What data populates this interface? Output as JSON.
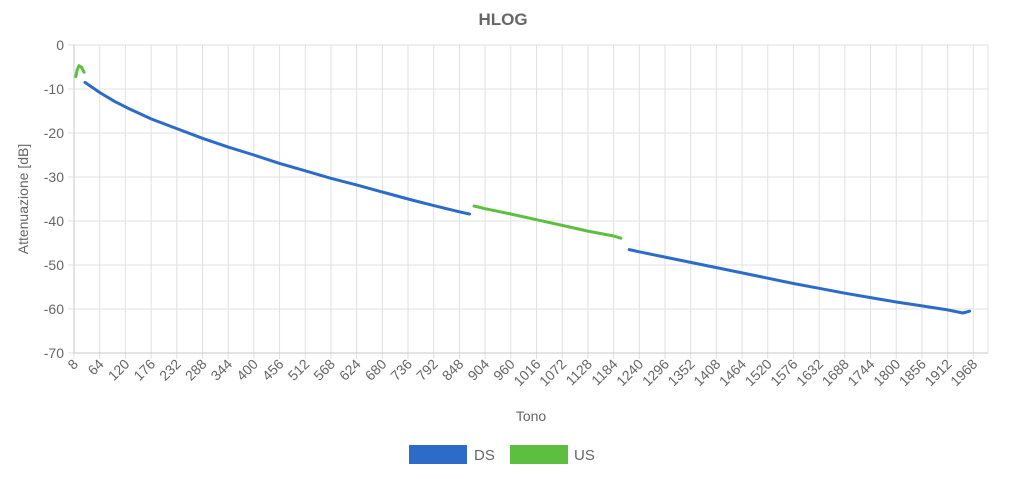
{
  "chart_data": {
    "type": "line",
    "title": "HLOG",
    "xlabel": "Tono",
    "ylabel": "Attenuazione [dB]",
    "xlim": [
      8,
      2000
    ],
    "ylim": [
      -70,
      0
    ],
    "x_tick_labels": [
      "8",
      "64",
      "120",
      "176",
      "232",
      "288",
      "344",
      "400",
      "456",
      "512",
      "568",
      "624",
      "680",
      "736",
      "792",
      "848",
      "904",
      "960",
      "1016",
      "1072",
      "1128",
      "1184",
      "1240",
      "1296",
      "1352",
      "1408",
      "1464",
      "1520",
      "1576",
      "1632",
      "1688",
      "1744",
      "1800",
      "1856",
      "1912",
      "1968"
    ],
    "y_tick_labels": [
      "0",
      "-10",
      "-20",
      "-30",
      "-40",
      "-50",
      "-60",
      "-70"
    ],
    "grid": true,
    "legend_position": "bottom",
    "series": [
      {
        "name": "DS",
        "color": "#2d6bc9",
        "segments": [
          [
            [
              32,
              -8.5
            ],
            [
              64,
              -10.8
            ],
            [
              96,
              -12.8
            ],
            [
              128,
              -14.5
            ],
            [
              176,
              -16.8
            ],
            [
              232,
              -19.0
            ],
            [
              288,
              -21.2
            ],
            [
              344,
              -23.2
            ],
            [
              400,
              -25.0
            ],
            [
              456,
              -26.9
            ],
            [
              512,
              -28.6
            ],
            [
              568,
              -30.3
            ],
            [
              624,
              -31.8
            ],
            [
              680,
              -33.4
            ],
            [
              736,
              -35.0
            ],
            [
              792,
              -36.5
            ],
            [
              848,
              -37.9
            ],
            [
              870,
              -38.4
            ]
          ],
          [
            [
              1218,
              -46.5
            ],
            [
              1240,
              -47.0
            ],
            [
              1296,
              -48.2
            ],
            [
              1352,
              -49.4
            ],
            [
              1408,
              -50.6
            ],
            [
              1464,
              -51.8
            ],
            [
              1520,
              -53.0
            ],
            [
              1576,
              -54.2
            ],
            [
              1632,
              -55.3
            ],
            [
              1688,
              -56.4
            ],
            [
              1744,
              -57.4
            ],
            [
              1800,
              -58.4
            ],
            [
              1856,
              -59.3
            ],
            [
              1912,
              -60.2
            ],
            [
              1945,
              -60.9
            ],
            [
              1960,
              -60.5
            ]
          ]
        ]
      },
      {
        "name": "US",
        "color": "#5cbf3f",
        "segments": [
          [
            [
              12,
              -7.2
            ],
            [
              15,
              -5.6
            ],
            [
              19,
              -4.7
            ],
            [
              24,
              -5.0
            ],
            [
              30,
              -6.2
            ]
          ],
          [
            [
              880,
              -36.6
            ],
            [
              904,
              -37.2
            ],
            [
              960,
              -38.4
            ],
            [
              1016,
              -39.7
            ],
            [
              1072,
              -41.0
            ],
            [
              1128,
              -42.3
            ],
            [
              1184,
              -43.4
            ],
            [
              1200,
              -43.9
            ]
          ]
        ]
      }
    ]
  }
}
